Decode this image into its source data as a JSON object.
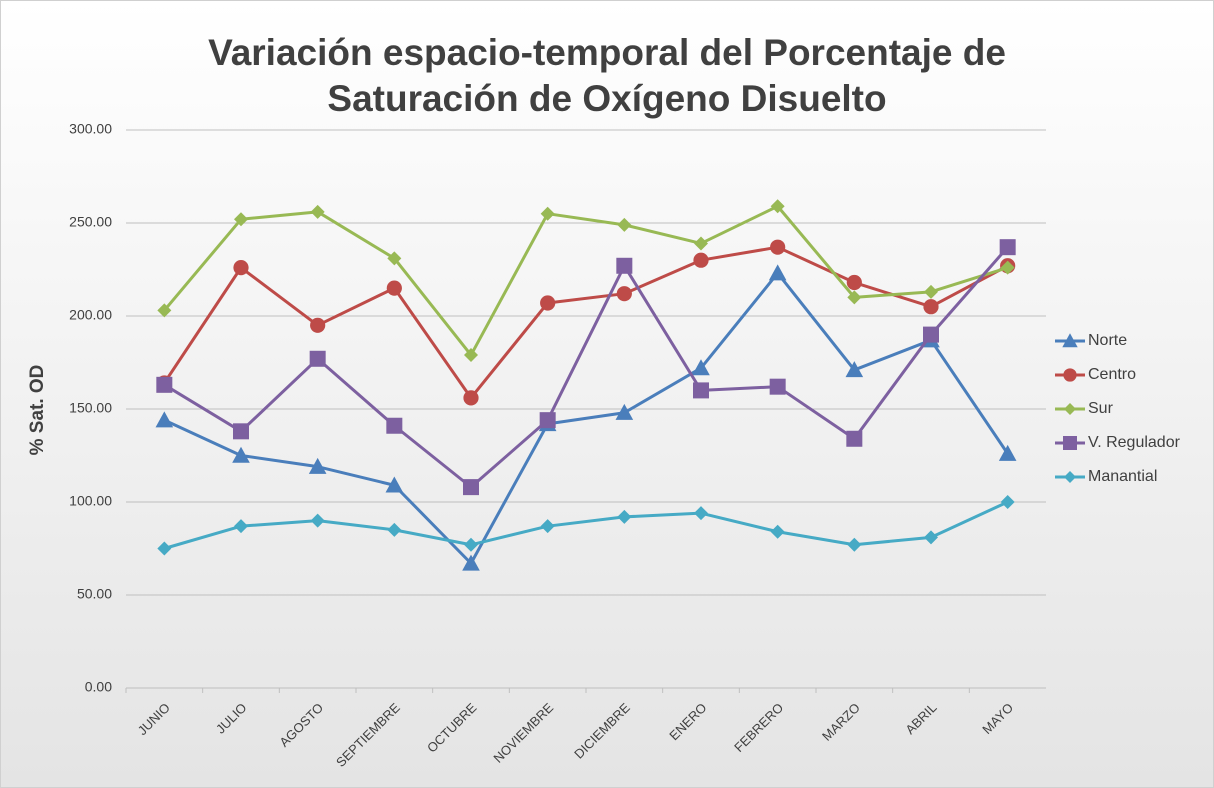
{
  "chart_data": {
    "type": "line",
    "title": "Variación espacio-temporal del Porcentaje de Saturación de Oxígeno Disuelto",
    "y_label": "% Sat. OD",
    "categories": [
      "JUNIO",
      "JULIO",
      "AGOSTO",
      "SEPTIEMBRE",
      "OCTUBRE",
      "NOVIEMBRE",
      "DICIEMBRE",
      "ENERO",
      "FEBRERO",
      "MARZO",
      "ABRIL",
      "MAYO"
    ],
    "series": [
      {
        "name": "Norte",
        "color": "#4a7ebb",
        "marker": "triangle",
        "values": [
          144,
          125,
          119,
          109,
          67,
          142,
          148,
          172,
          223,
          171,
          187,
          126
        ]
      },
      {
        "name": "Centro",
        "color": "#be4b48",
        "marker": "circle",
        "values": [
          164,
          226,
          195,
          215,
          156,
          207,
          212,
          230,
          237,
          218,
          205,
          227
        ]
      },
      {
        "name": "Sur",
        "color": "#98b954",
        "marker": "diamond",
        "values": [
          203,
          252,
          256,
          231,
          179,
          255,
          249,
          239,
          259,
          210,
          213,
          226
        ]
      },
      {
        "name": "V. Regulador",
        "color": "#7d60a0",
        "marker": "square",
        "values": [
          163,
          138,
          177,
          141,
          108,
          144,
          227,
          160,
          162,
          134,
          190,
          237
        ]
      },
      {
        "name": "Manantial",
        "color": "#46aac5",
        "marker": "diamond",
        "values": [
          75,
          87,
          90,
          85,
          77,
          87,
          92,
          94,
          84,
          77,
          81,
          100
        ]
      }
    ],
    "ylim": [
      0,
      300
    ],
    "yticks": [
      {
        "value": 0,
        "label": "0.00"
      },
      {
        "value": 50,
        "label": "50.00"
      },
      {
        "value": 100,
        "label": "100.00"
      },
      {
        "value": 150,
        "label": "150.00"
      },
      {
        "value": 200,
        "label": "200.00"
      },
      {
        "value": 250,
        "label": "250.00"
      },
      {
        "value": 300,
        "label": "300.00"
      }
    ],
    "grid": true,
    "legend": "right"
  }
}
